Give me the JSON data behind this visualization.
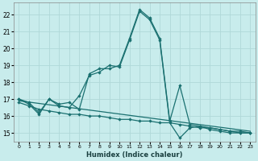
{
  "xlabel": "Humidex (Indice chaleur)",
  "bg_color": "#c8ecec",
  "grid_color": "#b0d8d8",
  "line_color": "#1a7070",
  "xlim": [
    -0.5,
    23.5
  ],
  "ylim": [
    14.5,
    22.7
  ],
  "yticks": [
    15,
    16,
    17,
    18,
    19,
    20,
    21,
    22
  ],
  "xticks": [
    0,
    1,
    2,
    3,
    4,
    5,
    6,
    7,
    8,
    9,
    10,
    11,
    12,
    13,
    14,
    15,
    16,
    17,
    18,
    19,
    20,
    21,
    22,
    23
  ],
  "line1_x": [
    0,
    1,
    2,
    3,
    4,
    5,
    6,
    7,
    8,
    9,
    10,
    11,
    12,
    13,
    14,
    15,
    16,
    17,
    18,
    19,
    20,
    21,
    22,
    23
  ],
  "line1_y": [
    17.0,
    16.8,
    16.2,
    17.0,
    16.7,
    16.8,
    16.4,
    18.5,
    18.8,
    18.8,
    19.0,
    20.6,
    22.3,
    21.8,
    20.6,
    15.7,
    17.8,
    15.5,
    15.4,
    15.3,
    15.2,
    15.1,
    15.0,
    15.0
  ],
  "line2_x": [
    0,
    1,
    2,
    3,
    4,
    5,
    6,
    7,
    8,
    9,
    10,
    11,
    12,
    13,
    14,
    15,
    16,
    17,
    18,
    19,
    20,
    21,
    22,
    23
  ],
  "line2_y": [
    17.0,
    16.7,
    16.1,
    17.0,
    16.6,
    16.5,
    17.2,
    18.4,
    18.6,
    19.0,
    18.9,
    20.5,
    22.2,
    21.7,
    20.5,
    15.6,
    14.7,
    15.3,
    15.4,
    15.2,
    15.1,
    15.0,
    15.0,
    15.0
  ],
  "line3_x": [
    0,
    1,
    2,
    3,
    4,
    5,
    6,
    7,
    8,
    9,
    10,
    11,
    12,
    13,
    14,
    15,
    16,
    17,
    18,
    19,
    20,
    21,
    22,
    23
  ],
  "line3_y": [
    16.8,
    16.6,
    16.4,
    16.3,
    16.2,
    16.1,
    16.1,
    16.0,
    16.0,
    15.9,
    15.8,
    15.8,
    15.7,
    15.7,
    15.6,
    15.6,
    15.5,
    15.4,
    15.3,
    15.3,
    15.2,
    15.1,
    15.1,
    15.0
  ],
  "line4_x": [
    0,
    23
  ],
  "line4_y": [
    16.9,
    15.1
  ]
}
